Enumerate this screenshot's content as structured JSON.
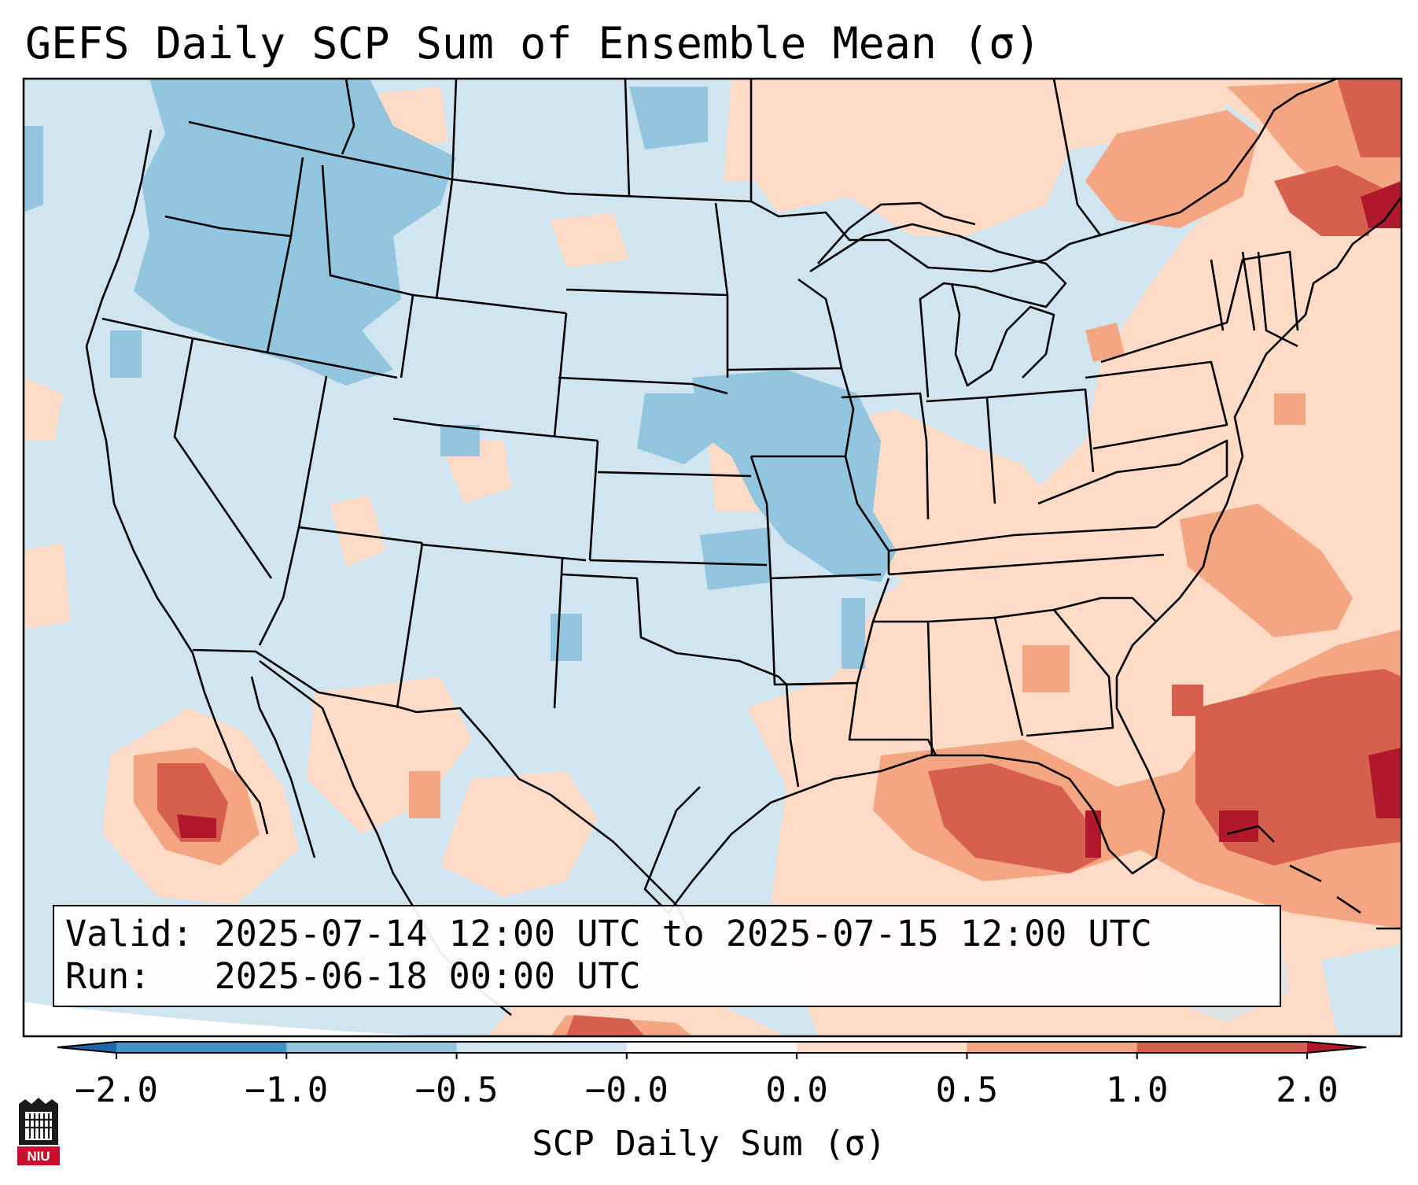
{
  "title": "GEFS Daily SCP Sum of Ensemble Mean (σ)",
  "info": {
    "valid_line": "Valid: 2025-07-14 12:00 UTC to 2025-07-15 12:00 UTC",
    "run_line": "Run:   2025-06-18 00:00 UTC"
  },
  "colorbar": {
    "label": "SCP Daily Sum (σ)",
    "ticks": [
      "−2.0",
      "−1.0",
      "−0.5",
      "−0.0",
      "0.0",
      "0.5",
      "1.0",
      "2.0"
    ],
    "colors": [
      "#4393c3",
      "#92c5de",
      "#d1e5f0",
      "#f7f7f7",
      "#fddbc7",
      "#f4a582",
      "#d6604d"
    ],
    "under_color": "#2166ac",
    "over_color": "#b2182b"
  },
  "logo": {
    "text": "NIU",
    "color": "#c8102e"
  },
  "colors": {
    "ocean_fill": "#d6e6f2",
    "border": "#000000"
  }
}
